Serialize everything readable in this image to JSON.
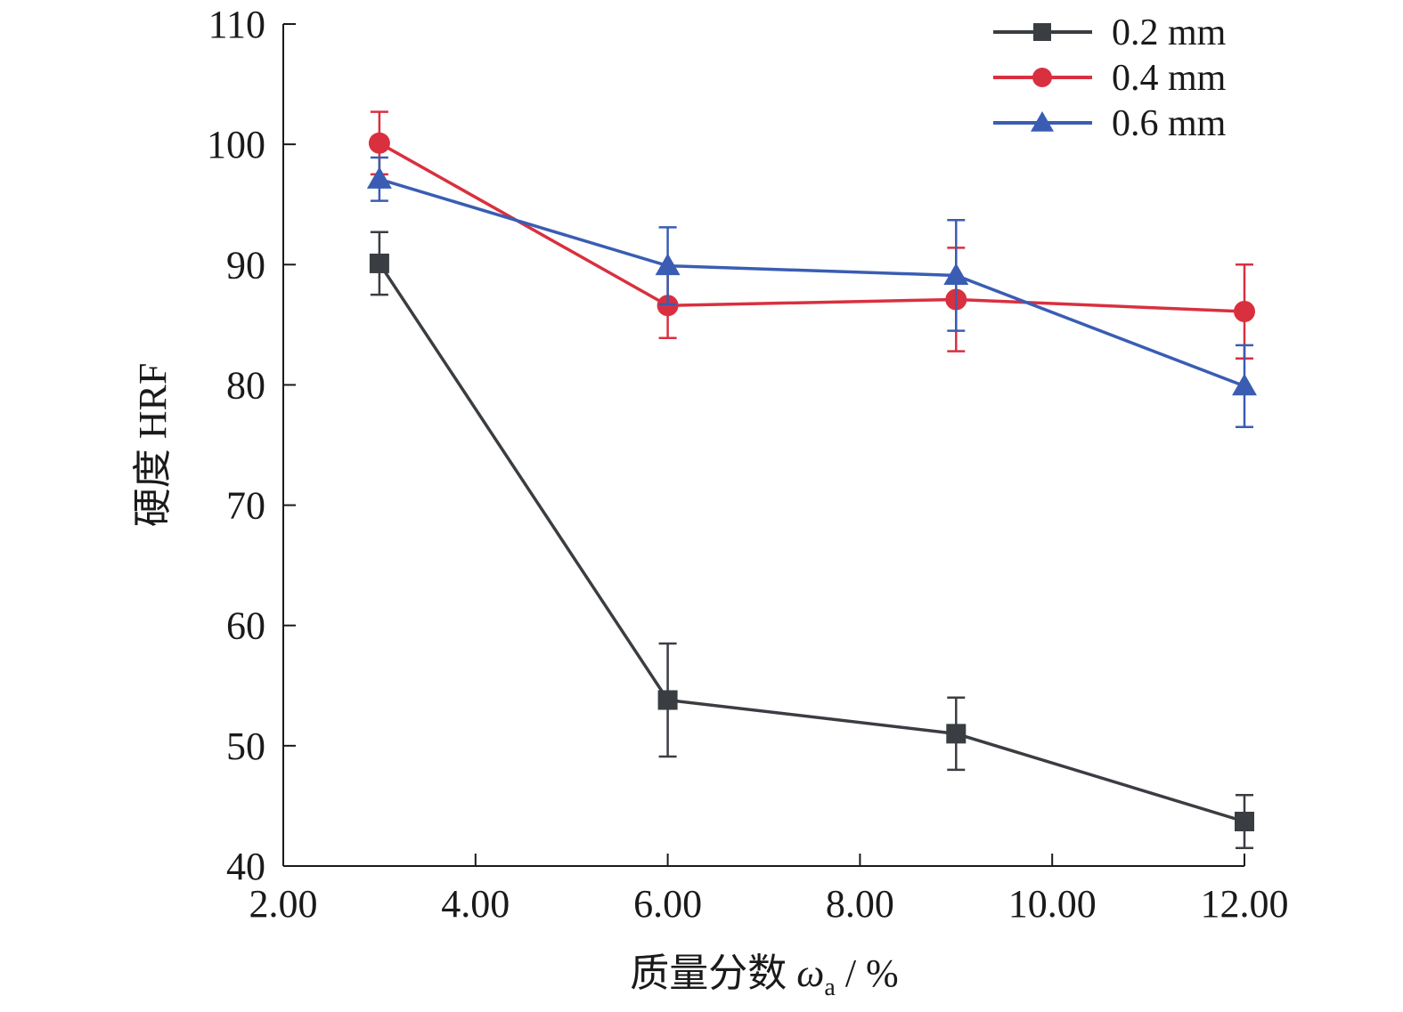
{
  "chart_data": {
    "type": "line",
    "xlabel": "质量分数 ωa / %",
    "ylabel": "硬度 HRF",
    "xlim": [
      2,
      12
    ],
    "ylim": [
      40,
      110
    ],
    "x_ticks": [
      "2.00",
      "4.00",
      "6.00",
      "8.00",
      "10.00",
      "12.00"
    ],
    "y_ticks": [
      "40",
      "50",
      "60",
      "70",
      "80",
      "90",
      "100",
      "110"
    ],
    "x": [
      3,
      6,
      9,
      12
    ],
    "legend_position": "top-right",
    "grid": false,
    "series": [
      {
        "name": "0.2 mm",
        "marker": "square",
        "color": "#3a3d42",
        "values": [
          90.1,
          53.8,
          51.0,
          43.7
        ],
        "errors": [
          2.6,
          4.7,
          3.0,
          2.2
        ]
      },
      {
        "name": "0.4 mm",
        "marker": "circle",
        "color": "#d9303f",
        "values": [
          100.1,
          86.6,
          87.1,
          86.1
        ],
        "errors": [
          2.6,
          2.7,
          4.3,
          3.9
        ]
      },
      {
        "name": "0.6 mm",
        "marker": "triangle",
        "color": "#3a5db3",
        "values": [
          97.1,
          89.9,
          89.1,
          79.9
        ],
        "errors": [
          1.8,
          3.2,
          4.6,
          3.4
        ]
      }
    ]
  }
}
